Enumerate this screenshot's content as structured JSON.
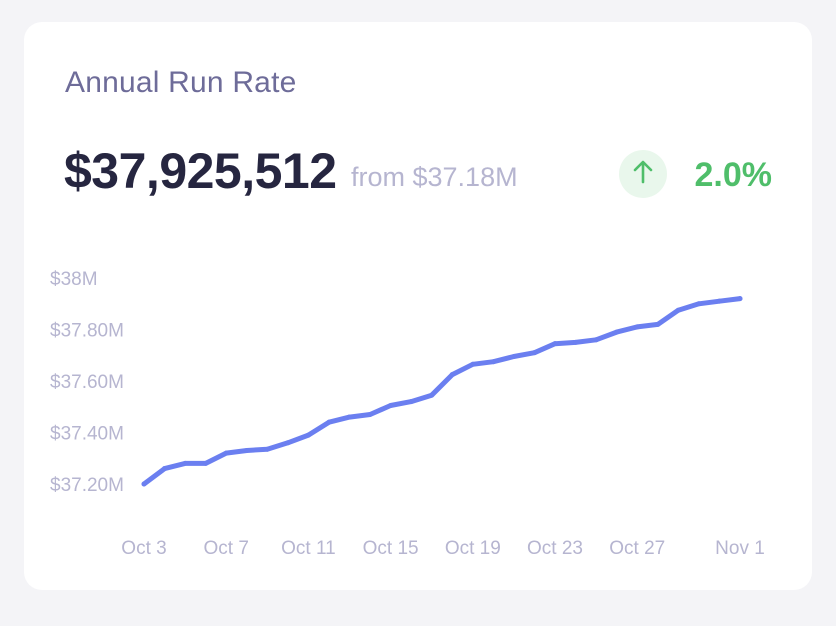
{
  "card": {
    "title": "Annual Run Rate",
    "value": "$37,925,512",
    "from_text": "from $37.18M",
    "change_icon": "arrow-up-icon",
    "change_percent": "2.0%"
  },
  "colors": {
    "line": "#6b7ff0",
    "positive": "#4fbe6a",
    "positive_bg": "#e9f7ec",
    "axis_text": "#b6b5d0"
  },
  "chart_data": {
    "type": "line",
    "title": "",
    "xlabel": "",
    "ylabel": "",
    "ylim": [
      37.1,
      38.0
    ],
    "y_ticks": [
      {
        "value": 38.0,
        "label": "$38M"
      },
      {
        "value": 37.8,
        "label": "$37.80M"
      },
      {
        "value": 37.6,
        "label": "$37.60M"
      },
      {
        "value": 37.4,
        "label": "$37.40M"
      },
      {
        "value": 37.2,
        "label": "$37.20M"
      }
    ],
    "x_ticks": [
      {
        "day": 0,
        "label": "Oct 3"
      },
      {
        "day": 4,
        "label": "Oct 7"
      },
      {
        "day": 8,
        "label": "Oct 11"
      },
      {
        "day": 12,
        "label": "Oct 15"
      },
      {
        "day": 16,
        "label": "Oct 19"
      },
      {
        "day": 20,
        "label": "Oct 23"
      },
      {
        "day": 24,
        "label": "Oct 27"
      },
      {
        "day": 29,
        "label": "Nov 1"
      }
    ],
    "series": [
      {
        "values": [
          37.2,
          37.26,
          37.28,
          37.28,
          37.32,
          37.33,
          37.335,
          37.36,
          37.39,
          37.44,
          37.46,
          37.47,
          37.505,
          37.52,
          37.545,
          37.625,
          37.665,
          37.675,
          37.695,
          37.71,
          37.745,
          37.75,
          37.76,
          37.79,
          37.81,
          37.82,
          37.875,
          37.9,
          37.91,
          37.92
        ]
      }
    ],
    "grid": false,
    "legend": "none"
  }
}
